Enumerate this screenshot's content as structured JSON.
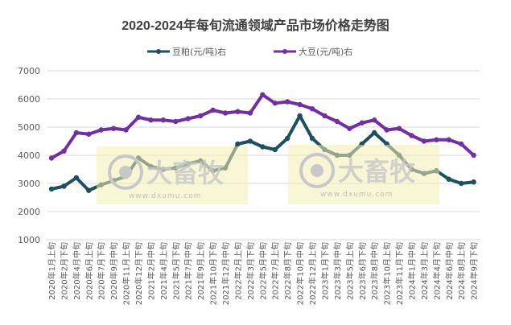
{
  "chart_data": {
    "type": "line",
    "title": "2020-2024年每旬流通领域产品市场价格走势图",
    "xlabel": "",
    "ylabel": "",
    "ylim": [
      1000,
      7000
    ],
    "yticks": [
      1000,
      2000,
      3000,
      4000,
      5000,
      6000,
      7000
    ],
    "grid": true,
    "legend_position": "top",
    "categories": [
      "2020年1月上旬",
      "2020年2月下旬",
      "2020年4月中旬",
      "2020年6月上旬",
      "2020年7月下旬",
      "2020年9月中旬",
      "2020年11月上旬",
      "2020年12月下旬",
      "2021年2月中旬",
      "2021年4月上旬",
      "2021年5月下旬",
      "2021年7月中旬",
      "2021年9月上旬",
      "2021年10月下旬",
      "2021年12月中旬",
      "2022年2月上旬",
      "2022年3月下旬",
      "2022年5月中旬",
      "2022年7月上旬",
      "2022年8月下旬",
      "2022年10月中旬",
      "2022年12月上旬",
      "2023年1月下旬",
      "2023年3月中旬",
      "2023年5月上旬",
      "2023年6月下旬",
      "2023年8月中旬",
      "2023年10月上旬",
      "2023年11月下旬",
      "2024年1月中旬",
      "2024年3月上旬",
      "2024年4月下旬",
      "2024年6月中旬",
      "2024年8月上旬",
      "2024年9月下旬"
    ],
    "series": [
      {
        "name": "豆粕(元/吨)右",
        "color": "#1f4e5f",
        "values": [
          2800,
          2900,
          3200,
          2750,
          2950,
          3100,
          3250,
          3900,
          3600,
          3500,
          3550,
          3700,
          3800,
          3450,
          3550,
          4400,
          4500,
          4300,
          4200,
          4600,
          5400,
          4600,
          4200,
          4000,
          4000,
          4400,
          4800,
          4400,
          4000,
          3500,
          3350,
          3450,
          3150,
          3000,
          3050
        ]
      },
      {
        "name": "大豆(元/吨)右",
        "color": "#7030a0",
        "values": [
          3900,
          4150,
          4800,
          4750,
          4900,
          4950,
          4900,
          5350,
          5250,
          5250,
          5200,
          5300,
          5400,
          5600,
          5500,
          5550,
          5500,
          6150,
          5850,
          5900,
          5800,
          5650,
          5400,
          5200,
          4950,
          5150,
          5250,
          4900,
          4950,
          4700,
          4500,
          4550,
          4550,
          4400,
          4000
        ]
      }
    ]
  },
  "watermark": {
    "brand": "大畜牧",
    "url": "www.dxumu.com",
    "color": "#f2eeb0"
  }
}
